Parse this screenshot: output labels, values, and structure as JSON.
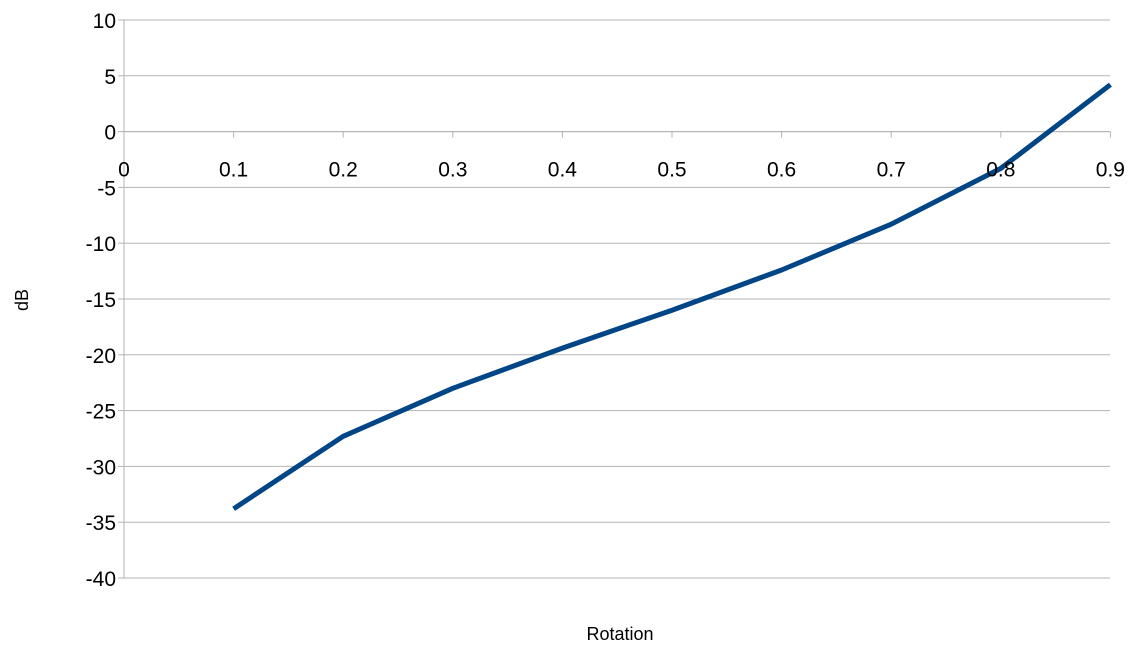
{
  "chart_data": {
    "type": "line",
    "title": "",
    "xlabel": "Rotation",
    "ylabel": "dB",
    "x_ticks": [
      "0",
      "0.1",
      "0.2",
      "0.3",
      "0.4",
      "0.5",
      "0.6",
      "0.7",
      "0.8",
      "0.9"
    ],
    "y_ticks": [
      "10",
      "5",
      "0",
      "-5",
      "-10",
      "-15",
      "-20",
      "-25",
      "-30",
      "-35",
      "-40"
    ],
    "xlim": [
      0,
      0.9
    ],
    "ylim": [
      -40,
      10
    ],
    "grid": true,
    "legend": "none",
    "series": [
      {
        "color": "#004586",
        "x": [
          0.1,
          0.2,
          0.3,
          0.4,
          0.5,
          0.6,
          0.7,
          0.8,
          0.9
        ],
        "y": [
          -33.8,
          -27.3,
          -23.0,
          -19.4,
          -16.0,
          -12.4,
          -8.3,
          -3.3,
          4.2
        ]
      }
    ]
  }
}
